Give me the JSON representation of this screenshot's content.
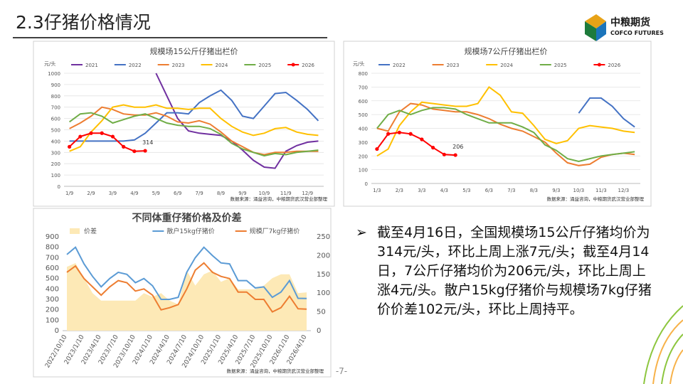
{
  "header": {
    "title": "2.3仔猪价格情况",
    "logo_name": "中粮期货",
    "logo_en": "COFCO FUTURES"
  },
  "chart_data": [
    {
      "type": "line",
      "title": "规模场15公斤仔猪出栏价",
      "y_label": "元/头",
      "grid": true,
      "categories": [
        "1/9",
        null,
        "2/9",
        null,
        "3/9",
        null,
        "4/9",
        null,
        "5/9",
        null,
        "6/9",
        null,
        "7/9",
        null,
        "8/9",
        null,
        "9/9",
        null,
        "10/9",
        null,
        "11/9",
        null,
        "12/9",
        null
      ],
      "ylim": [
        0,
        1000
      ],
      "yticks": [
        0,
        100,
        200,
        300,
        400,
        500,
        600,
        700,
        800,
        900,
        1000
      ],
      "series": [
        {
          "name": "2021",
          "color": "#7030a0",
          "values": [
            null,
            null,
            null,
            null,
            null,
            null,
            null,
            null,
            1000,
            800,
            600,
            490,
            470,
            460,
            450,
            400,
            320,
            230,
            170,
            160,
            310,
            360,
            390,
            400
          ]
        },
        {
          "name": "2022",
          "color": "#4472c4",
          "values": [
            400,
            400,
            400,
            400,
            400,
            400,
            410,
            470,
            560,
            650,
            650,
            640,
            740,
            800,
            850,
            760,
            620,
            600,
            710,
            820,
            830,
            760,
            680,
            580
          ]
        },
        {
          "name": "2023",
          "color": "#ed7d31",
          "values": [
            510,
            560,
            620,
            700,
            680,
            640,
            630,
            630,
            650,
            620,
            570,
            560,
            580,
            550,
            480,
            400,
            350,
            300,
            280,
            300,
            300,
            310,
            310,
            310
          ]
        },
        {
          "name": "2024",
          "color": "#ffc000",
          "values": [
            310,
            350,
            480,
            580,
            700,
            720,
            700,
            700,
            720,
            690,
            690,
            680,
            690,
            690,
            600,
            530,
            480,
            450,
            470,
            510,
            520,
            480,
            460,
            450
          ]
        },
        {
          "name": "2025",
          "color": "#70ad47",
          "values": [
            570,
            640,
            650,
            620,
            560,
            590,
            620,
            640,
            600,
            560,
            540,
            530,
            530,
            510,
            460,
            380,
            330,
            300,
            270,
            290,
            280,
            300,
            310,
            320
          ]
        },
        {
          "name": "2026",
          "color": "#ff0000",
          "marker": true,
          "label_last": true,
          "values": [
            350,
            440,
            470,
            470,
            440,
            350,
            310,
            314,
            null,
            null,
            null,
            null,
            null,
            null,
            null,
            null,
            null,
            null,
            null,
            null,
            null,
            null,
            null,
            null
          ]
        }
      ],
      "source": "数据来源：涌益咨询，中粮期货武汉营业部整理"
    },
    {
      "type": "line",
      "title": "规模场7公斤仔猪出栏价",
      "y_label": "元/头",
      "grid": true,
      "categories": [
        "1/3",
        null,
        "2/3",
        null,
        "3/3",
        null,
        "4/3",
        null,
        "5/3",
        null,
        "6/3",
        null,
        "7/3",
        null,
        "8/3",
        null,
        "9/3",
        null,
        "10/3",
        null,
        "11/3",
        null,
        "12/3",
        null
      ],
      "ylim": [
        0,
        800
      ],
      "yticks": [
        0,
        100,
        200,
        300,
        400,
        500,
        600,
        700,
        800
      ],
      "series": [
        {
          "name": "2022",
          "color": "#4472c4",
          "values": [
            null,
            null,
            null,
            null,
            null,
            null,
            null,
            null,
            null,
            null,
            null,
            null,
            null,
            null,
            null,
            null,
            null,
            null,
            510,
            620,
            620,
            560,
            470,
            410
          ]
        },
        {
          "name": "2023",
          "color": "#ed7d31",
          "values": [
            400,
            380,
            520,
            580,
            570,
            540,
            530,
            520,
            520,
            500,
            470,
            430,
            400,
            380,
            340,
            300,
            220,
            150,
            130,
            140,
            190,
            210,
            220,
            210
          ]
        },
        {
          "name": "2024",
          "color": "#ffc000",
          "values": [
            200,
            250,
            420,
            520,
            590,
            580,
            570,
            560,
            560,
            580,
            700,
            640,
            520,
            510,
            420,
            320,
            290,
            310,
            400,
            420,
            410,
            400,
            380,
            370
          ]
        },
        {
          "name": "2025",
          "color": "#70ad47",
          "values": [
            400,
            500,
            530,
            500,
            530,
            550,
            550,
            540,
            500,
            470,
            440,
            440,
            440,
            410,
            370,
            280,
            240,
            180,
            160,
            180,
            200,
            210,
            220,
            230
          ]
        },
        {
          "name": "2026",
          "color": "#ff0000",
          "marker": true,
          "label_last": true,
          "values": [
            250,
            360,
            370,
            360,
            320,
            260,
            210,
            206,
            null,
            null,
            null,
            null,
            null,
            null,
            null,
            null,
            null,
            null,
            null,
            null,
            null,
            null,
            null,
            null
          ]
        }
      ],
      "source": "数据来源：涌益咨询，中粮期货武汉营业部整理"
    },
    {
      "type": "line",
      "title": "不同体重仔猪价格及价差",
      "grid": false,
      "categories": [
        "2022/10/10",
        null,
        "2023/1/10",
        null,
        "2023/4/10",
        null,
        "2023/7/10",
        null,
        "2023/10/10",
        null,
        "2024/1/10",
        null,
        "2024/4/10",
        null,
        "2024/7/10",
        null,
        "2024/10/10",
        null,
        "2025/1/10",
        null,
        "2025/4/10",
        null,
        "2025/7/10",
        null,
        "2025/10/10",
        null,
        "2026/1/10",
        null,
        "2026/4/10"
      ],
      "ylim": [
        0,
        900
      ],
      "yticks": [
        0,
        100,
        200,
        300,
        400,
        500,
        600,
        700,
        800,
        900
      ],
      "y2lim": [
        0,
        250
      ],
      "y2ticks": [
        0,
        50,
        100,
        150,
        200,
        250
      ],
      "series": [
        {
          "name": "价差",
          "color": "#fde9b6",
          "type": "area",
          "axis": "y2",
          "values": [
            170,
            180,
            140,
            100,
            80,
            80,
            80,
            80,
            80,
            100,
            90,
            100,
            80,
            70,
            160,
            120,
            150,
            160,
            130,
            140,
            110,
            110,
            110,
            120,
            140,
            150,
            150,
            100,
            102
          ]
        },
        {
          "name": "散户15kg仔猪价",
          "color": "#5b9bd5",
          "values": [
            730,
            800,
            640,
            520,
            420,
            500,
            560,
            540,
            460,
            500,
            430,
            300,
            300,
            320,
            560,
            700,
            800,
            720,
            650,
            640,
            480,
            480,
            410,
            420,
            320,
            370,
            480,
            310,
            308
          ]
        },
        {
          "name": "规模厂7kg仔猪价",
          "color": "#ed7d31",
          "values": [
            560,
            620,
            500,
            420,
            340,
            420,
            480,
            460,
            380,
            400,
            340,
            200,
            220,
            250,
            400,
            580,
            650,
            560,
            520,
            500,
            370,
            370,
            300,
            300,
            180,
            220,
            330,
            210,
            206
          ]
        }
      ],
      "source": "数据来源：涌益咨询，中粮期货武汉营业部整理"
    }
  ],
  "bullet": "截至4月16日，全国规模场15公斤仔猪均价为314元/头，环比上周上涨7元/头；截至4月14日，7公斤仔猪均价为206元/头，环比上周上涨4元/头。散户15kg仔猪价与规模场7kg仔猪价价差102元/头，环比上周持平。",
  "page_number": "-7-"
}
